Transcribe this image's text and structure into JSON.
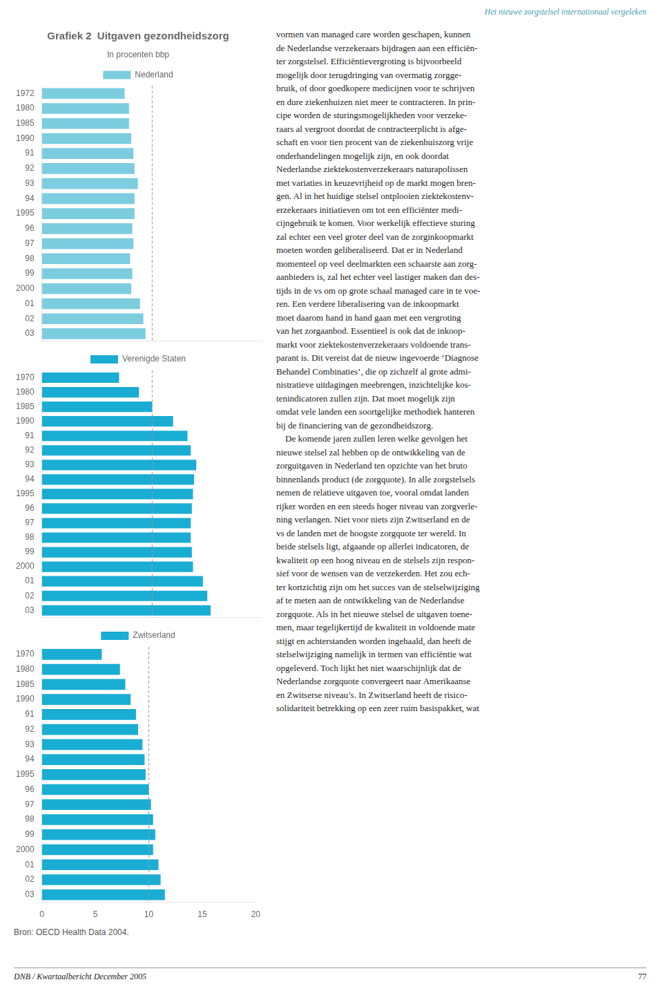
{
  "chart_data": [
    {
      "type": "bar",
      "orientation": "horizontal",
      "title": "Grafiek 2  Uitgaven gezondheidszorg",
      "subtitle": "In procenten bbp",
      "categories": [
        "1972",
        "1980",
        "1985",
        "1990",
        "91",
        "92",
        "93",
        "94",
        "1995",
        "96",
        "97",
        "98",
        "99",
        "2000",
        "01",
        "02",
        "03"
      ],
      "series": [
        {
          "name": "Nederland",
          "color": "#7ccde0",
          "values": [
            7.5,
            7.9,
            7.9,
            8.1,
            8.3,
            8.4,
            8.7,
            8.4,
            8.4,
            8.2,
            8.3,
            8.0,
            8.2,
            8.1,
            8.9,
            9.2,
            9.4
          ]
        }
      ],
      "xlim": [
        0,
        20
      ],
      "xticks": [
        0,
        5,
        10,
        15,
        20
      ],
      "reference_x": 10,
      "grid": false,
      "legend": "top",
      "tick_labels": "y",
      "annotations": [
        "Het nieuwe zorgstelsel internationaal vergeleken",
        "vormen van managed care worden geschapen, kunnen\nde Nederlandse verzekeraars bijdragen aan een efficiën-\nter zorgstelsel. Efficiëntievergroting is bijvoorbeeld\nmogelijk door terugdringing van overmatig zorgge-\nbruik, of door goedkopere medicijnen voor te schrijven\nen dure ziekenhuizen niet meer te contracteren. In prin-\ncipe worden de sturingsmogelijkheden voor verzeke-\nraars al vergroot doordat de contracteerplicht is afge-\nschaft en voor tien procent van de ziekenhuiszorg vrije\nonderhandelingen mogelijk zijn, en ook doordat\nNederlandse ziektekostenverzekeraars naturapolissen\nmet variaties in keuzevrijheid op de markt mogen bren-\ngen. Al in het huidige stelsel ontplooien ziektekostenv-\nerzekeraars initiatieven om tot een efficiënter medi-\ncijngebruik te komen. Voor werkelijk effectieve sturing\nzal echter een veel groter deel van de zorginkoopmarkt\nmoeten worden geliberaliseerd. Dat er in Nederland\nmomenteel op veel deelmarkten een schaarste aan zorg-\naanbieders is, zal het echter veel lastiger maken dan des-\ntijds in de vs om op grote schaal managed care in te voe-\nren. Een verdere liberalisering van de inkoopmarkt\nmoet daarom hand in hand gaan met een vergroting\nvan het zorgaanbod. Essentieel is ook dat de inkoop-\nmarkt voor ziektekostenverzekeraars voldoende trans-\nparant is. Dit vereist dat de nieuw ingevoerde ‘Diagnose\nBehandel Combinaties’, die op zichzelf al grote admi-\nnistratieve uitdagingen meebrengen, inzichtelijke kos-\ntenindicatoren zullen zijn. Dat moet mogelijk zijn\nomdat vele landen een soortgelijke methodiek hanteren\nbij de financiering van de gezondheidszorg.\n De komende jaren zullen leren welke gevolgen het\nnieuwe stelsel zal hebben op de ontwikkeling van de\nzorguitgaven in Nederland ten opzichte van het bruto\nbinnenlands product (de zorgquote). In alle zorgstelsels\nnemen de relatieve uitgaven toe, vooral omdat landen\nrijker worden en een steeds hoger niveau van zorgverle-\nning verlangen. Niet voor niets zijn Zwitserland en de\nvs de landen met de hoogste zorgquote ter wereld. In\nbeide stelsels ligt, afgaande op allerlei indicatoren, de\nkwaliteit op een hoog niveau en de stelsels zijn respon-\nsief voor de wensen van de verzekerden. Het zou ech-\nter kortzichtig zijn om het succes van de stelselwijziging\naf te meten aan de ontwikkeling van de Nederlandse\nzorgquote. Als in het nieuwe stelsel de uitgaven toene-\nmen, maar tegelijkertijd de kwaliteit in voldoende mate\nstijgt en achterstanden worden ingehaald, dan heeft de\nstelselwijziging namelijk in termen van efficiëntie wat\nopgeleverd. Toch lijkt het niet waarschijnlijk dat de\nNederlandse zorgquote convergeert naar Amerikaanse\nen Zwitserse niveau’s. In Zwitserland heeft de risico-\nsolidariteit betrekking op een zeer ruim basispakket, wat",
        "DNB / Kwartaalbericht December 2005",
        "77"
      ]
    },
    {
      "type": "bar",
      "orientation": "horizontal",
      "categories": [
        "1970",
        "1980",
        "1985",
        "1990",
        "91",
        "92",
        "93",
        "94",
        "1995",
        "96",
        "97",
        "98",
        "99",
        "2000",
        "01",
        "02",
        "03"
      ],
      "series": [
        {
          "name": "Verenigde Staten",
          "color": "#1aadd4",
          "values": [
            7.0,
            8.8,
            10.0,
            11.9,
            13.2,
            13.5,
            14.0,
            13.8,
            13.7,
            13.6,
            13.5,
            13.5,
            13.6,
            13.7,
            14.6,
            15.0,
            15.3
          ]
        }
      ],
      "xlim": [
        0,
        20
      ],
      "xticks": [
        0,
        5,
        10,
        15,
        20
      ],
      "reference_x": 10,
      "grid": false,
      "legend": "top",
      "tick_labels": "y"
    },
    {
      "type": "bar",
      "orientation": "horizontal",
      "categories": [
        "1970",
        "1980",
        "1985",
        "1990",
        "91",
        "92",
        "93",
        "94",
        "1995",
        "96",
        "97",
        "98",
        "99",
        "2000",
        "01",
        "02",
        "03"
      ],
      "series": [
        {
          "name": "Zwitserland",
          "color": "#1aadd4",
          "values": [
            5.6,
            7.3,
            7.8,
            8.3,
            8.8,
            9.0,
            9.4,
            9.6,
            9.7,
            10.0,
            10.2,
            10.4,
            10.6,
            10.4,
            10.9,
            11.1,
            11.5
          ]
        }
      ],
      "xlim": [
        0,
        20
      ],
      "xticks": [
        0,
        5,
        10,
        15,
        20
      ],
      "reference_x": 10,
      "grid": false,
      "legend": "top",
      "annotations": [
        "Bron: OECD Health Data 2004."
      ]
    }
  ]
}
